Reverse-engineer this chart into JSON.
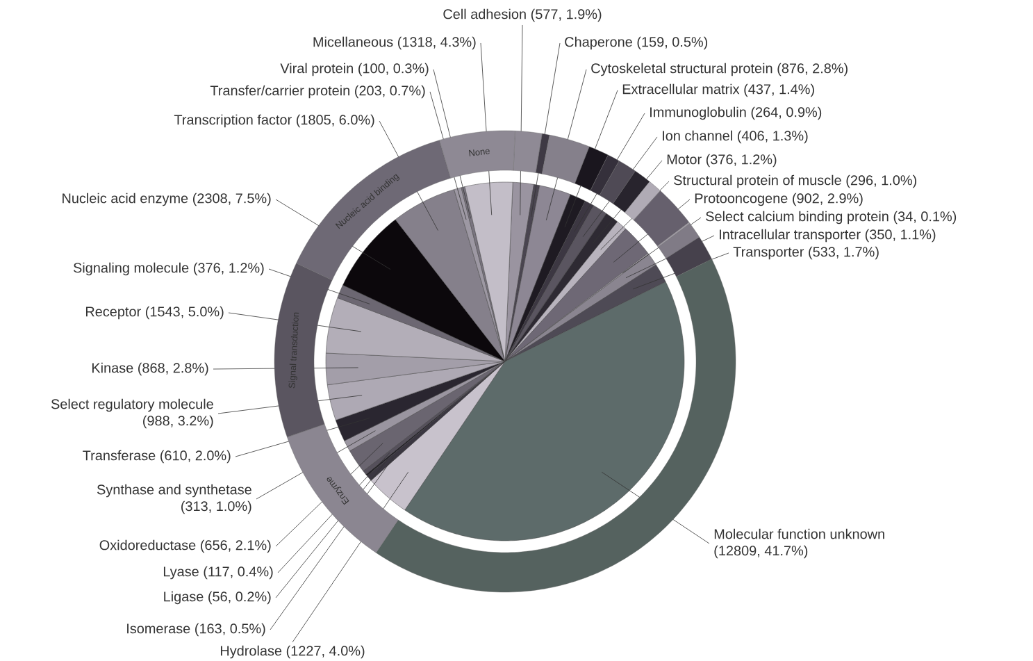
{
  "chart_data": [
    {
      "type": "pie",
      "categories": [
        "Cell adhesion",
        "Chaperone",
        "Cytoskeletal structural protein",
        "Extracellular matrix",
        "Immunoglobulin",
        "Ion channel",
        "Motor",
        "Structural protein of muscle",
        "Protooncogene",
        "Select calcium binding protein",
        "Intracellular transporter",
        "Transporter",
        "Molecular function unknown",
        "Hydrolase",
        "Isomerase",
        "Ligase",
        "Lyase",
        "Oxidoreductase",
        "Synthase and synthetase",
        "Transferase",
        "Select regulatory molecule",
        "Kinase",
        "Receptor",
        "Signaling molecule",
        "Nucleic acid enzyme",
        "Transcription factor",
        "Transfer/carrier protein",
        "Viral protein",
        "Micellaneous"
      ],
      "values": [
        577,
        159,
        876,
        437,
        264,
        406,
        376,
        296,
        902,
        34,
        350,
        533,
        12809,
        1227,
        163,
        56,
        117,
        656,
        313,
        610,
        988,
        868,
        1543,
        376,
        2308,
        1805,
        203,
        100,
        1318
      ],
      "value_labels": [
        "(577, 1.9%)",
        "(159, 0.5%)",
        "(876, 2.8%)",
        "(437, 1.4%)",
        "(264, 0.9%)",
        "(406, 1.3%)",
        "(376, 1.2%)",
        "(296, 1.0%)",
        "(902, 2.9%)",
        "(34, 0.1%)",
        "(350, 1.1%)",
        "(533, 1.7%)",
        "(12809, 41.7%)",
        "(1227, 4.0%)",
        "(163, 0.5%)",
        "(56, 0.2%)",
        "(117, 0.4%)",
        "(656, 2.1%)",
        "(313, 1.0%)",
        "(610, 2.0%)",
        "(988, 3.2%)",
        "(868, 2.8%)",
        "(1543, 5.0%)",
        "(376, 1.2%)",
        "(2308, 7.5%)",
        "(1805, 6.0%)",
        "(203, 0.7%)",
        "(100, 0.3%)",
        "(1318, 4.3%)"
      ],
      "colors": [
        "#9a94a0",
        "#4a4550",
        "#8d8794",
        "#1e1a22",
        "#3c3742",
        "#5a5560",
        "#2e2a33",
        "#b8b3bd",
        "#6e6875",
        "#a8a3ad",
        "#8a8590",
        "#4e4a55",
        "#5d6b6a",
        "#c8c2cc",
        "#3a3640",
        "#25222a",
        "#55505b",
        "#6a6570",
        "#9a95a0",
        "#2a2630",
        "#aea9b4",
        "#a39ea9",
        "#b3aeb8",
        "#6c6772",
        "#0c080c",
        "#85808b",
        "#9d98a3",
        "#7a7580",
        "#c3bec8"
      ]
    },
    {
      "type": "donut",
      "categories": [
        null,
        null,
        null,
        null,
        null,
        null,
        null,
        null,
        null,
        null,
        null,
        null,
        null,
        "Enzyme",
        "Signal transduction",
        "Nucleic acid binding",
        "None"
      ],
      "values": [
        1.88,
        0.52,
        2.86,
        1.42,
        0.86,
        1.32,
        1.23,
        0.97,
        2.94,
        0.11,
        1.14,
        1.74,
        41.76,
        10.24,
        12.31,
        13.41,
        5.29
      ],
      "colors": [
        "#8f8a95",
        "#3e3944",
        "#85808b",
        "#1a161e",
        "#35303b",
        "#4f4a55",
        "#28242d",
        "#b0abb5",
        "#66606d",
        "#a09ba5",
        "#807b86",
        "#46414c",
        "#55625f",
        "#8b8691",
        "#5a5560",
        "#6e6975",
        "#8e8994"
      ]
    }
  ]
}
